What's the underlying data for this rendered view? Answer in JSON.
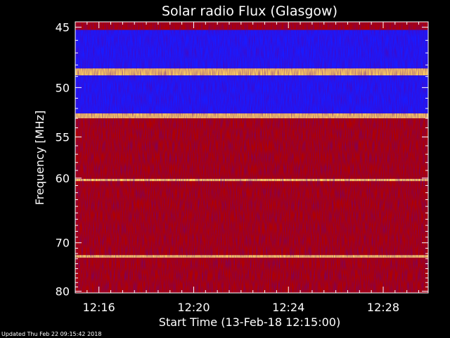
{
  "chart_data": {
    "type": "heatmap",
    "title": "Solar radio Flux (Glasgow)",
    "xlabel": "Start Time (13-Feb-18 12:15:00)",
    "ylabel": "Frequency [MHz]",
    "x_ticks": [
      "12:16",
      "12:20",
      "12:24",
      "12:28"
    ],
    "x_tick_minutes": [
      16,
      20,
      24,
      28
    ],
    "xlim_minutes": [
      15.0,
      29.9
    ],
    "y_ticks": [
      45,
      50,
      55,
      60,
      70,
      80
    ],
    "ylim": [
      44.6,
      80.4
    ],
    "y_scale": "reciprocal",
    "grid": false,
    "colors": {
      "background": "#000000",
      "low": "#1a1aff",
      "mid": "#b00000",
      "high": "#ffd060"
    },
    "bands": [
      {
        "from": 44.6,
        "to": 45.2,
        "level": "mid"
      },
      {
        "from": 45.2,
        "to": 48.3,
        "level": "low"
      },
      {
        "from": 48.3,
        "to": 48.9,
        "level": "high"
      },
      {
        "from": 48.9,
        "to": 52.5,
        "level": "low"
      },
      {
        "from": 52.5,
        "to": 53.0,
        "level": "high"
      },
      {
        "from": 53.0,
        "to": 80.4,
        "level": "mid"
      },
      {
        "from": 60.1,
        "to": 60.4,
        "level": "high"
      },
      {
        "from": 72.3,
        "to": 72.8,
        "level": "high"
      }
    ]
  },
  "footer": {
    "updated": "Updated Thu Feb 22 09:15:42 2018"
  }
}
